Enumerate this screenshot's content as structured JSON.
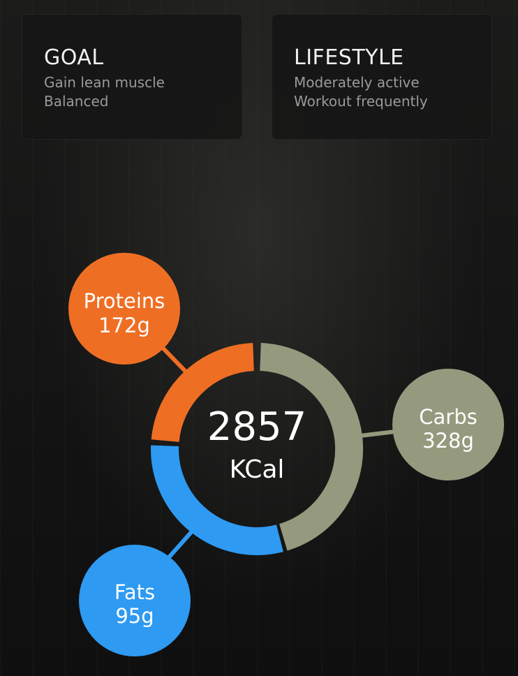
{
  "goal": {
    "title": "GOAL",
    "line1": "Gain lean muscle",
    "line2": "Balanced"
  },
  "lifestyle": {
    "title": "LIFESTYLE",
    "line1": "Moderately active",
    "line2": "Workout frequently"
  },
  "calories": {
    "value": "2857",
    "unit": "KCal"
  },
  "macros": {
    "proteins": {
      "label": "Proteins",
      "amount": "172g",
      "color": "#ee6f24"
    },
    "carbs": {
      "label": "Carbs",
      "amount": "328g",
      "color": "#959a7e"
    },
    "fats": {
      "label": "Fats",
      "amount": "95g",
      "color": "#2e9af2"
    }
  },
  "colors": {
    "background": "#141414",
    "card": "#161616"
  }
}
